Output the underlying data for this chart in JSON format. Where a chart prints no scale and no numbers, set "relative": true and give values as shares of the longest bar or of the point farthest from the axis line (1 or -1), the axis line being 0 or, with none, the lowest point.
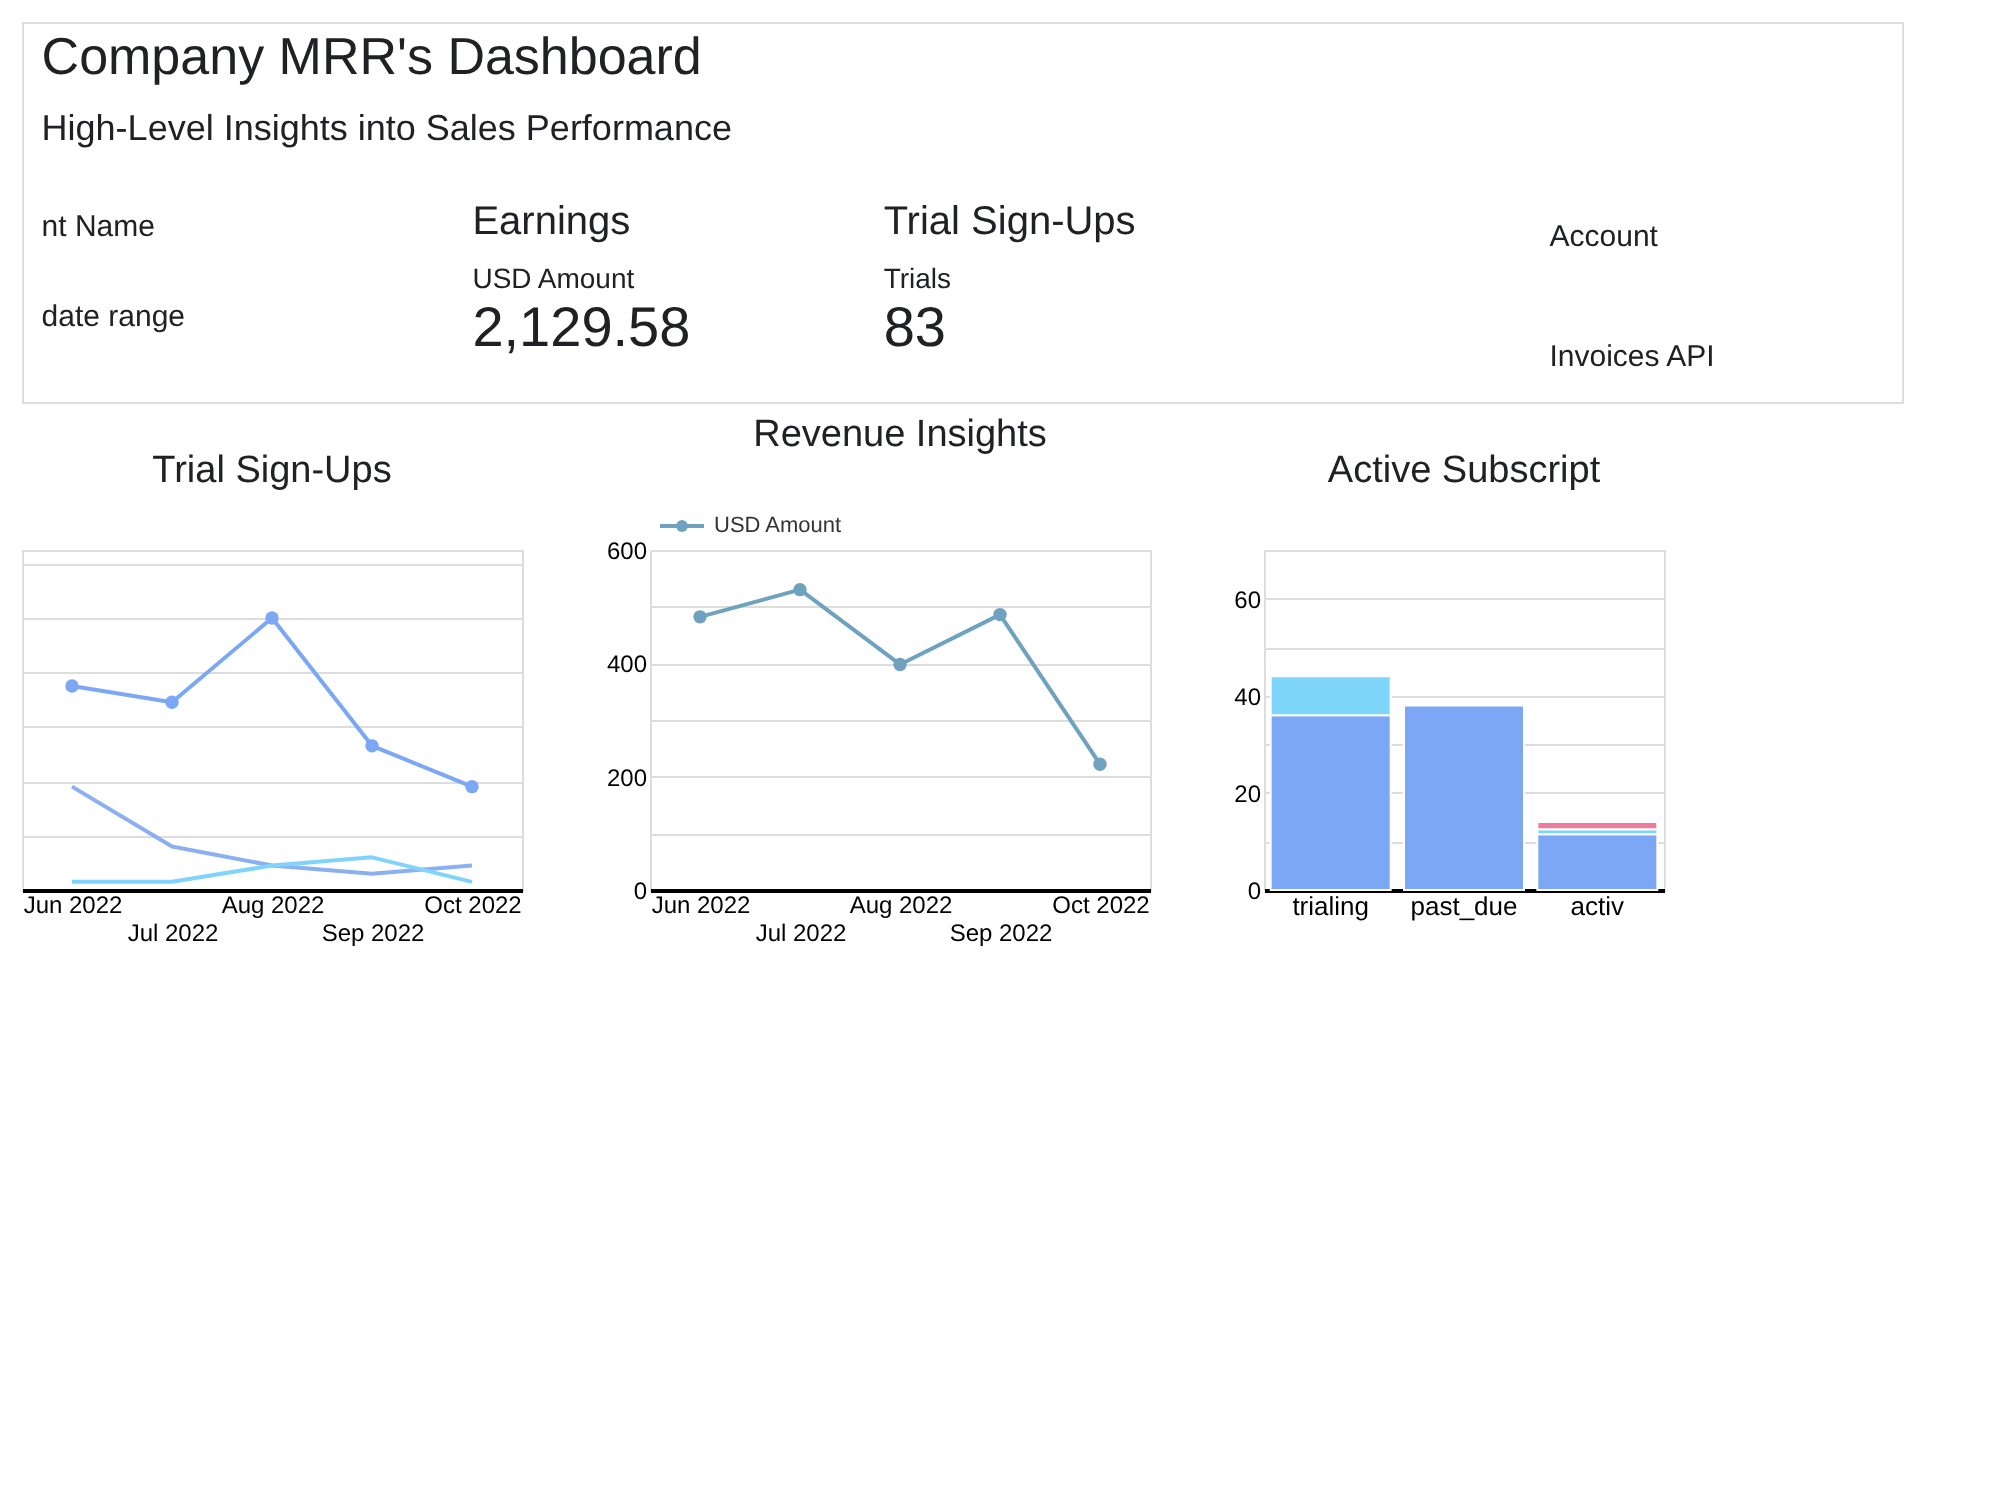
{
  "chart_data": [
    {
      "type": "other",
      "title": "Company MRR's Dashboard",
      "subtitle": "High-Level Insights into Sales Performance",
      "annotations": [
        "nt Name",
        "date range",
        "Earnings",
        "USD Amount",
        "2,129.58",
        "Trial Sign-Ups",
        "Trials",
        "83",
        "Account",
        "Invoices API"
      ]
    },
    {
      "type": "line",
      "title": "Trial Sign-Ups",
      "relative": true,
      "grid": "y",
      "legend": false,
      "marker": "circle",
      "categories": [
        "Jun 2022",
        "Jul 2022",
        "Aug 2022",
        "Sep 2022",
        "Oct 2022"
      ],
      "series": [
        {
          "color": "#7ba7f5",
          "values": [
            0.75,
            0.69,
            1,
            0.53,
            0.38
          ]
        },
        {
          "color": "#8ab0f2",
          "marker": "none",
          "values": [
            0.38,
            0.16,
            0.09,
            0.06,
            0.09
          ]
        },
        {
          "color": "#80d4fb",
          "marker": "none",
          "values": [
            0.03,
            0.03,
            0.09,
            0.12,
            0.03
          ]
        }
      ]
    },
    {
      "type": "line",
      "title": "Revenue Insights",
      "grid": "y",
      "legend": "top left",
      "marker": "circle",
      "categories": [
        "Jun 2022",
        "Jul 2022",
        "Aug 2022",
        "Sep 2022",
        "Oct 2022"
      ],
      "ylim": [
        0,
        600
      ],
      "yticks": [
        0,
        {
          "value": 100,
          "label": null
        },
        200,
        {
          "value": 300,
          "label": null
        },
        400,
        {
          "value": 500,
          "label": null
        },
        600
      ],
      "series": [
        {
          "name": "USD Amount",
          "color": "#6fa2bf",
          "values": [
            482,
            530,
            398,
            486,
            222
          ]
        }
      ]
    },
    {
      "type": "bar",
      "title": "Active Subscript",
      "stacked": true,
      "grid": "y",
      "legend": false,
      "categories": [
        "trialing",
        "past_due",
        "activ"
      ],
      "ylim": [
        0,
        70
      ],
      "yticks": [
        0,
        {
          "value": 10,
          "label": null
        },
        20,
        {
          "value": 30,
          "label": null
        },
        40,
        {
          "value": 50,
          "label": null
        },
        60
      ],
      "series": [
        {
          "color": "#7ba7f5",
          "values": [
            36,
            38,
            11.5
          ]
        },
        {
          "color": "#7fd6fb",
          "values": [
            8,
            null,
            1
          ]
        },
        {
          "color": "#f07ba0",
          "values": [
            null,
            null,
            1.5
          ]
        }
      ]
    }
  ]
}
